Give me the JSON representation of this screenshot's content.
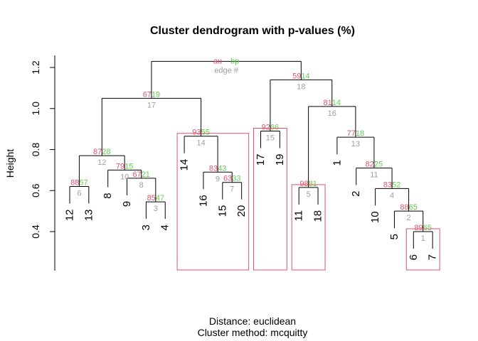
{
  "chart_data": {
    "type": "dendrogram",
    "title": "Cluster dendrogram with p-values (%)",
    "ylabel": "Height",
    "sub": [
      "Distance:  euclidean",
      "Cluster method: mcquitty"
    ],
    "yticks": [
      0.4,
      0.6,
      0.8,
      1.0,
      1.2
    ],
    "ytick_labels": [
      "0.4",
      "0.6",
      "0.8",
      "1.0",
      "1.2"
    ],
    "legend": {
      "au": "au",
      "bp": "bp",
      "edge": "edge #"
    },
    "colors": {
      "au": "#DF536B",
      "bp": "#61D04F",
      "edge": "#9E9E9E",
      "rect": "#DF536B",
      "line": "#000000"
    },
    "leaf_order": [
      "12",
      "13",
      "8",
      "9",
      "3",
      "4",
      "14",
      "16",
      "15",
      "20",
      "17",
      "19",
      "11",
      "18",
      "1",
      "2",
      "10",
      "5",
      "6",
      "7"
    ],
    "merges": [
      {
        "edge": 1,
        "left": "6",
        "right": "7",
        "height": 0.4,
        "au": 89,
        "bp": 65
      },
      {
        "edge": 2,
        "left": "5",
        "right": "e1",
        "height": 0.5,
        "au": 88,
        "bp": 65
      },
      {
        "edge": 3,
        "left": "3",
        "right": "4",
        "height": 0.545,
        "au": 85,
        "bp": 47
      },
      {
        "edge": 4,
        "left": "10",
        "right": "e2",
        "height": 0.61,
        "au": 83,
        "bp": 52
      },
      {
        "edge": 5,
        "left": "11",
        "right": "18",
        "height": 0.615,
        "au": 98,
        "bp": 81
      },
      {
        "edge": 6,
        "left": "12",
        "right": "13",
        "height": 0.62,
        "au": 88,
        "bp": 57
      },
      {
        "edge": 7,
        "left": "15",
        "right": "20",
        "height": 0.64,
        "au": 63,
        "bp": 33
      },
      {
        "edge": 8,
        "left": "9",
        "right": "e3",
        "height": 0.66,
        "au": 67,
        "bp": 21
      },
      {
        "edge": 9,
        "left": "16",
        "right": "e7",
        "height": 0.69,
        "au": 83,
        "bp": 43
      },
      {
        "edge": 10,
        "left": "8",
        "right": "e8",
        "height": 0.7,
        "au": 79,
        "bp": 15
      },
      {
        "edge": 11,
        "left": "2",
        "right": "e4",
        "height": 0.71,
        "au": 82,
        "bp": 25
      },
      {
        "edge": 12,
        "left": "e6",
        "right": "e10",
        "height": 0.77,
        "au": 87,
        "bp": 28
      },
      {
        "edge": 13,
        "left": "1",
        "right": "e11",
        "height": 0.86,
        "au": 77,
        "bp": 18
      },
      {
        "edge": 14,
        "left": "14",
        "right": "e9",
        "height": 0.865,
        "au": 93,
        "bp": 55
      },
      {
        "edge": 15,
        "left": "17",
        "right": "19",
        "height": 0.89,
        "au": 92,
        "bp": 66
      },
      {
        "edge": 16,
        "left": "e5",
        "right": "e13",
        "height": 1.01,
        "au": 81,
        "bp": 14
      },
      {
        "edge": 17,
        "left": "e12",
        "right": "e14",
        "height": 1.05,
        "au": 67,
        "bp": 19
      },
      {
        "edge": 18,
        "left": "e15",
        "right": "e16",
        "height": 1.14,
        "au": 59,
        "bp": 14
      },
      {
        "edge": 19,
        "left": "e17",
        "right": "e18",
        "height": 1.23,
        "root": true
      }
    ],
    "highlighted_clusters": [
      [
        "14",
        "16",
        "15",
        "20"
      ],
      [
        "17",
        "19"
      ],
      [
        "11",
        "18"
      ],
      [
        "6",
        "7"
      ]
    ]
  }
}
